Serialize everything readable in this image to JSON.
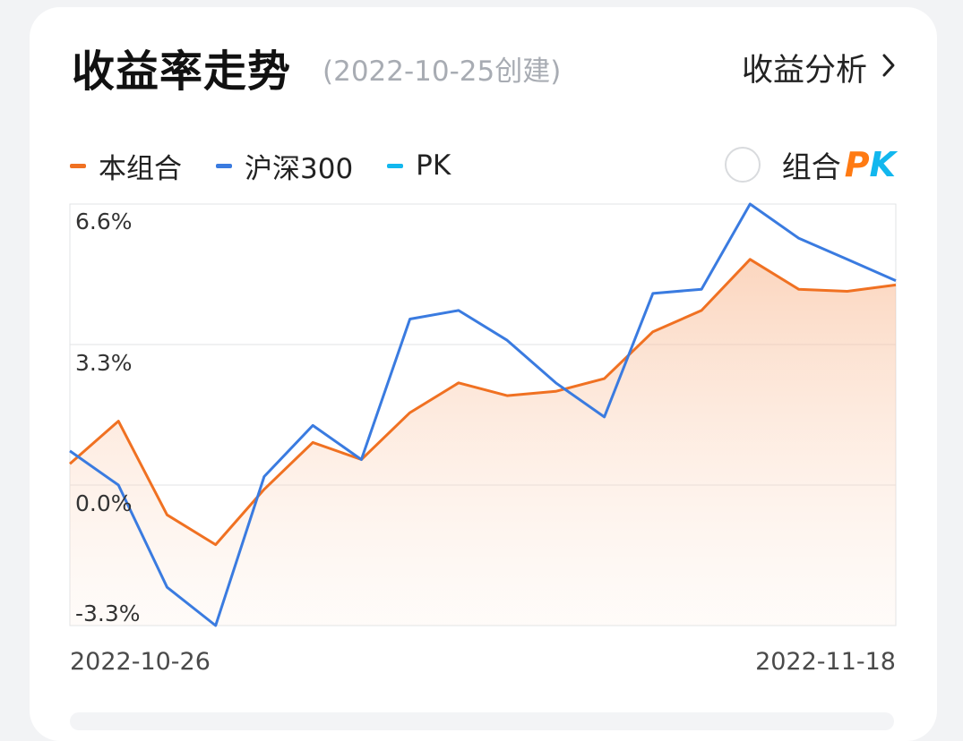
{
  "header": {
    "title": "收益率走势",
    "subtitle": "(2022-10-25创建)",
    "analysis_link": "收益分析",
    "chevron_icon": "chevron-right-icon"
  },
  "legend": [
    {
      "label": "本组合",
      "color": "#f07122"
    },
    {
      "label": "沪深300",
      "color": "#3a7be0"
    },
    {
      "label": "PK",
      "color": "#12b7ee"
    }
  ],
  "pk_toggle": {
    "label": "组合",
    "pk_p": "P",
    "pk_k": "K",
    "checked": false
  },
  "chart_data": {
    "type": "line",
    "ylim": [
      -3.3,
      6.6
    ],
    "y_ticks": [
      "6.6%",
      "3.3%",
      "0.0%",
      "-3.3%"
    ],
    "y_tick_values": [
      6.6,
      3.3,
      0.0,
      -3.3
    ],
    "x_labels": [
      "2022-10-26",
      "2022-11-18"
    ],
    "gridlines": true,
    "series": [
      {
        "name": "本组合",
        "color": "#f07122",
        "filled": true,
        "values": [
          0.5,
          1.5,
          -0.7,
          -1.4,
          -0.1,
          1.0,
          0.6,
          1.7,
          2.4,
          2.1,
          2.2,
          2.5,
          3.6,
          4.1,
          5.3,
          4.6,
          4.55,
          4.7
        ]
      },
      {
        "name": "沪深300",
        "color": "#3a7be0",
        "filled": false,
        "values": [
          0.8,
          0.0,
          -2.4,
          -3.3,
          0.2,
          1.4,
          0.6,
          3.9,
          4.1,
          3.4,
          2.4,
          1.6,
          4.5,
          4.6,
          6.6,
          5.8,
          5.3,
          4.8
        ]
      }
    ]
  }
}
